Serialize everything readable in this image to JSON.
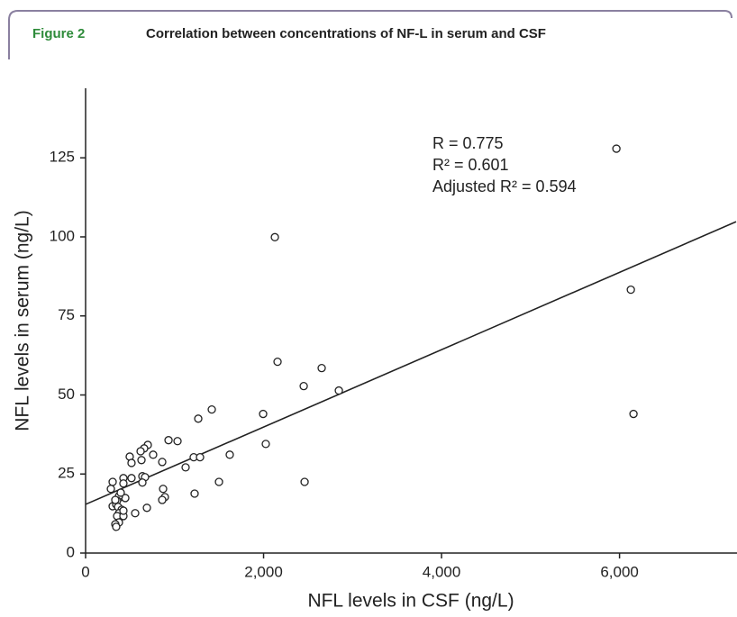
{
  "figure": {
    "label": "Figure 2",
    "title": "Correlation between concentrations of NF-L in serum and CSF"
  },
  "chart_data": {
    "type": "scatter",
    "x_label": "NFL levels in CSF (ng/L)",
    "y_label": "NFL levels in serum (ng/L)",
    "annotations": [
      "R = 0.775",
      "R² = 0.601",
      "Adjusted R² = 0.594"
    ],
    "x": [
      5965,
      6127,
      6157,
      2127,
      2157,
      2653,
      2451,
      2846,
      1418,
      1995,
      1266,
      2025,
      2461,
      1620,
      1499,
      1225,
      1215,
      1286,
      1124,
      932,
      1033,
      861,
      871,
      891,
      861,
      699,
      658,
      618,
      759,
      628,
      496,
      516,
      638,
      668,
      516,
      425,
      638,
      425,
      304,
      689,
      557,
      395,
      446,
      284,
      304,
      344,
      375,
      354,
      365,
      405,
      375,
      354,
      425,
      375,
      334,
      344,
      334,
      395,
      425
    ],
    "values": [
      127.9,
      83.3,
      44.0,
      99.9,
      60.5,
      58.5,
      52.8,
      51.4,
      45.4,
      44.0,
      42.5,
      34.5,
      22.5,
      31.1,
      22.5,
      18.8,
      30.3,
      30.3,
      27.1,
      35.7,
      35.4,
      28.8,
      20.3,
      17.7,
      16.8,
      34.2,
      33.1,
      32.2,
      31.1,
      29.4,
      30.5,
      28.5,
      24.3,
      24.0,
      23.7,
      23.7,
      22.3,
      22.0,
      22.5,
      14.3,
      12.6,
      17.7,
      17.4,
      20.3,
      14.8,
      15.4,
      18.0,
      16.6,
      14.6,
      13.7,
      12.6,
      11.7,
      11.7,
      9.7,
      9.1,
      8.3,
      16.8,
      19.1,
      13.4
    ],
    "color": "#222222",
    "fit": {
      "x": [
        0,
        7310
      ],
      "values": [
        15.4,
        104.8
      ]
    },
    "xlim": [
      0,
      7310
    ],
    "ylim": [
      0,
      147
    ],
    "xticks": [
      0,
      {
        "value": 2000,
        "label": "2,000"
      },
      {
        "value": 4000,
        "label": "4,000"
      },
      {
        "value": 6000,
        "label": "6,000"
      }
    ],
    "yticks": [
      0,
      25,
      50,
      75,
      100,
      125
    ],
    "grid": false
  }
}
